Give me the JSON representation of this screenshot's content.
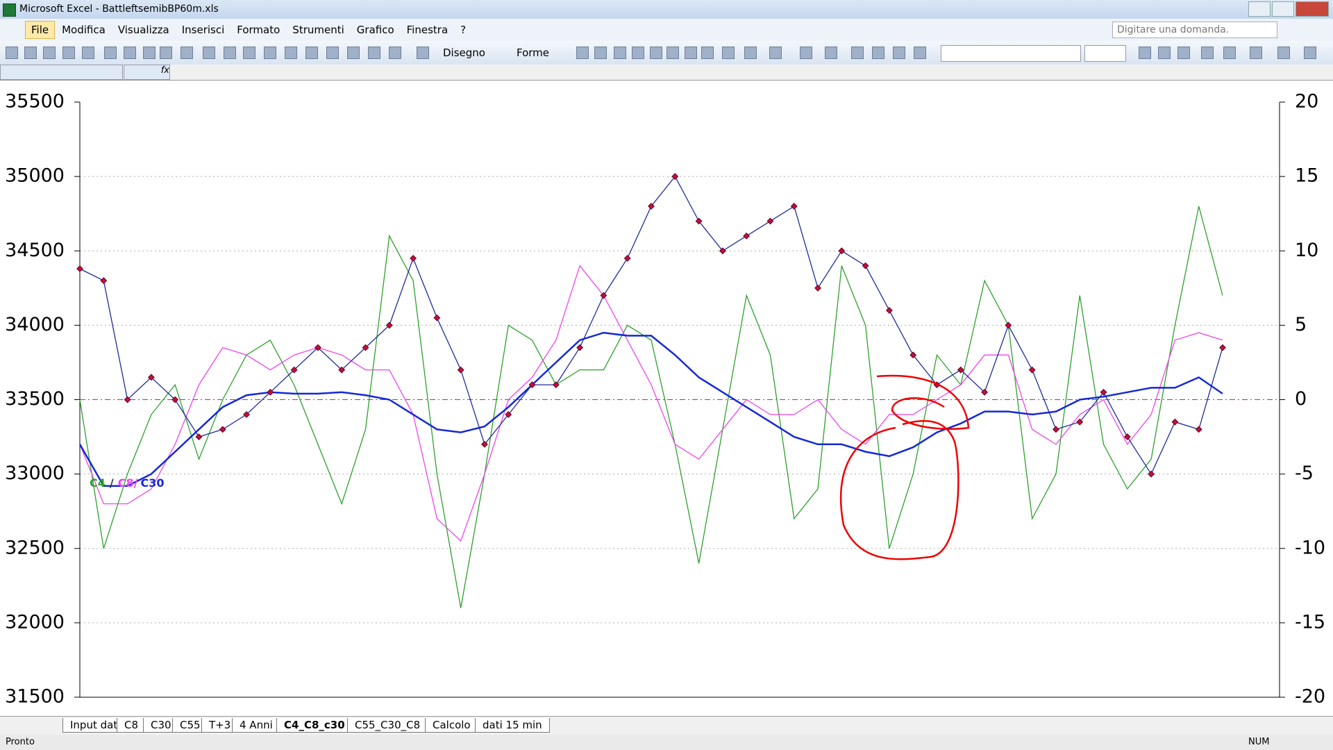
{
  "window": {
    "title": "Microsoft Excel - BattleftsemibBP60m.xls",
    "menus": [
      "File",
      "Modifica",
      "Visualizza",
      "Inserisci",
      "Formato",
      "Strumenti",
      "Grafico",
      "Finestra",
      "?"
    ],
    "ask": "Digitare una domanda.",
    "draw_menu": "Disegno",
    "shapes_menu": "Forme"
  },
  "chart_data": {
    "type": "line",
    "series": [
      {
        "color": "#1f2a9e",
        "axis": "y",
        "markers": true,
        "values": [
          34380,
          34300,
          33500,
          33650,
          33500,
          33250,
          33300,
          33400,
          33550,
          33700,
          33850,
          33700,
          33850,
          34000,
          34450,
          34050,
          33700,
          33200,
          33400,
          33600,
          33600,
          33850,
          34200,
          34450,
          34800,
          35000,
          34700,
          34500,
          34600,
          34700,
          34800,
          34250,
          34500,
          34400,
          34100,
          33800,
          33600,
          33700,
          33550,
          34000,
          33700,
          33300,
          33350,
          33550,
          33250,
          33000,
          33350,
          33300,
          33850
        ]
      },
      {
        "name": "C4",
        "color": "#2ca02c",
        "axis": "y2",
        "values": [
          0,
          -10,
          -5,
          -1,
          1,
          -4,
          0,
          3,
          4,
          1,
          -3,
          -7,
          -2,
          11,
          8,
          -5,
          -14,
          -5,
          5,
          4,
          1,
          2,
          2,
          5,
          4,
          -3,
          -11,
          -2,
          7,
          3,
          -8,
          -6,
          9,
          5,
          -10,
          -5,
          3,
          1,
          8,
          5,
          -8,
          -5,
          7,
          -3,
          -6,
          -4,
          5,
          13,
          7
        ]
      },
      {
        "name": "C8/",
        "color": "#ee44ee",
        "axis": "y2",
        "values": [
          -3,
          -7,
          -7,
          -6,
          -3,
          1,
          3.5,
          3,
          2,
          3,
          3.5,
          3,
          2,
          2,
          -1,
          -8,
          -9.5,
          -5,
          0,
          1.5,
          4,
          9,
          7,
          4,
          1,
          -3,
          -4,
          -2,
          0,
          -1,
          -1,
          0,
          -2,
          -3,
          -1,
          -1,
          0,
          1,
          3,
          3,
          -2,
          -3,
          -1,
          0,
          -3,
          -1,
          4,
          4.5,
          4
        ]
      },
      {
        "name": "C30",
        "color": "#1428d8",
        "axis": "y2",
        "values": [
          -3,
          -5.8,
          -5.8,
          -5,
          -3.5,
          -2,
          -0.5,
          0.3,
          0.5,
          0.4,
          0.4,
          0.5,
          0.3,
          0,
          -1,
          -2,
          -2.2,
          -1.8,
          -0.5,
          1,
          2.5,
          4,
          4.5,
          4.3,
          4.3,
          3,
          1.5,
          0.5,
          -0.5,
          -1.5,
          -2.5,
          -3,
          -3,
          -3.5,
          -3.8,
          -3.2,
          -2.2,
          -1.6,
          -0.8,
          -0.8,
          -1,
          -0.8,
          0,
          0.2,
          0.5,
          0.8,
          0.8,
          1.5,
          0.4
        ]
      }
    ],
    "legend_separator": "/",
    "ylim": [
      31500,
      35500
    ],
    "yticks": [
      31500,
      32000,
      32500,
      33000,
      33500,
      34000,
      34500,
      35000,
      35500
    ],
    "y2lim": [
      -20,
      20
    ],
    "y2ticks": [
      -20,
      -15,
      -10,
      -5,
      0,
      5,
      10,
      15,
      20
    ],
    "grid": true,
    "zero_line_color": "#a0308a"
  },
  "sheet_tabs": [
    "Input dati",
    "C8",
    "C30",
    "C55",
    "T+3",
    "4 Anni",
    "C4_C8_c30",
    "C55_C30_C8",
    "Calcolo",
    "dati 15 min"
  ],
  "active_tab": 6,
  "status_bar": {
    "left": "Pronto",
    "right": "NUM"
  }
}
